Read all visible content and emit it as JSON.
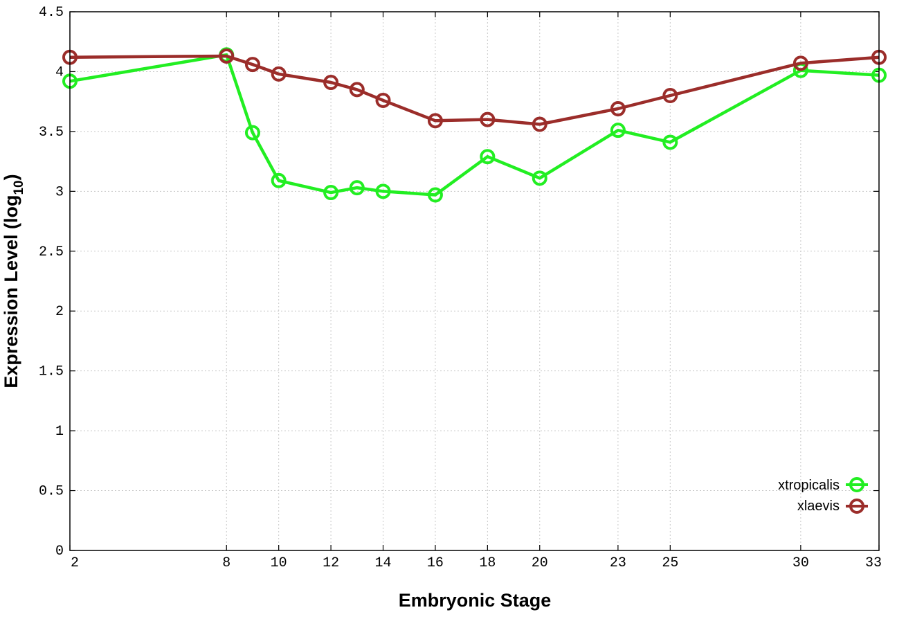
{
  "chart_data": {
    "type": "line",
    "xlabel": "Embryonic Stage",
    "ylabel": "Expression Level (log",
    "ylabel_sub": "10",
    "ylabel_close": ")",
    "ylim": [
      0,
      4.5
    ],
    "xlim": [
      2,
      33
    ],
    "x": [
      2,
      8,
      9,
      10,
      12,
      13,
      14,
      16,
      18,
      20,
      23,
      25,
      30,
      33
    ],
    "x_ticks": [
      "2",
      "8",
      "10",
      "12",
      "14",
      "16",
      "18",
      "20",
      "23",
      "25",
      "30",
      "33"
    ],
    "y_ticks": [
      "0",
      "0.5",
      "1",
      "1.5",
      "2",
      "2.5",
      "3",
      "3.5",
      "4",
      "4.5"
    ],
    "grid": true,
    "legend_position": "bottom-right",
    "series": [
      {
        "name": "xtropicalis",
        "color": "#22ee22",
        "values": [
          3.92,
          4.14,
          3.49,
          3.09,
          2.99,
          3.03,
          3.0,
          2.97,
          3.29,
          3.11,
          3.51,
          3.41,
          4.01,
          3.97
        ]
      },
      {
        "name": "xlaevis",
        "color": "#9b2d2a",
        "values": [
          4.12,
          4.13,
          4.06,
          3.98,
          3.91,
          3.85,
          3.76,
          3.59,
          3.6,
          3.56,
          3.69,
          3.8,
          4.07,
          4.12
        ]
      }
    ]
  }
}
